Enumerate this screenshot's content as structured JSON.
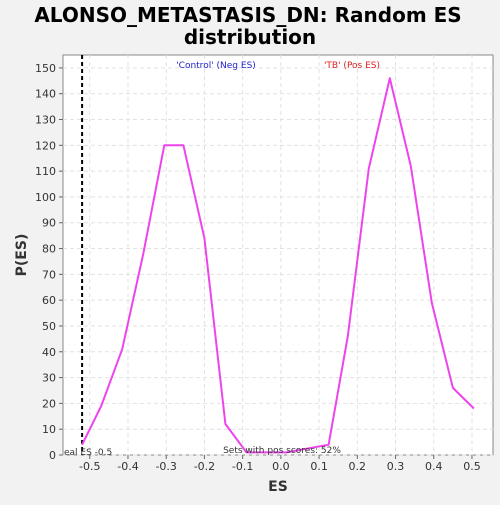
{
  "chart_data": {
    "type": "line",
    "title_line1": "ALONSO_METASTASIS_DN: Random ES",
    "title_line2": "distribution",
    "xlabel": "ES",
    "ylabel": "P(ES)",
    "xlim": [
      -0.57,
      0.555
    ],
    "ylim": [
      0,
      155
    ],
    "xticks": [
      -0.5,
      -0.4,
      -0.3,
      -0.2,
      -0.1,
      0.0,
      0.1,
      0.2,
      0.3,
      0.4,
      0.5
    ],
    "xtick_labels": [
      "-0.5",
      "-0.4",
      "-0.3",
      "-0.2",
      "-0.1",
      "0.0",
      "0.1",
      "0.2",
      "0.3",
      "0.4",
      "0.5"
    ],
    "yticks": [
      0,
      10,
      20,
      30,
      40,
      50,
      60,
      70,
      80,
      90,
      100,
      110,
      120,
      130,
      140,
      150
    ],
    "ytick_labels": [
      "0",
      "10",
      "20",
      "30",
      "40",
      "50",
      "60",
      "70",
      "80",
      "90",
      "100",
      "110",
      "120",
      "130",
      "140",
      "150"
    ],
    "grid": true,
    "series": [
      {
        "color": "#ee44ee",
        "x": [
          -0.52,
          -0.47,
          -0.415,
          -0.36,
          -0.305,
          -0.255,
          -0.2,
          -0.145,
          -0.09,
          0.015,
          0.125,
          0.175,
          0.23,
          0.285,
          0.34,
          0.395,
          0.45,
          0.505
        ],
        "y": [
          4,
          19,
          41,
          78,
          120,
          120,
          84,
          12,
          1,
          1,
          4,
          46,
          111,
          146,
          112,
          59,
          26,
          18
        ]
      }
    ],
    "actual_es": {
      "x": -0.52,
      "label": "eal ES -0.5"
    },
    "annotations": {
      "neg_label": "'Control' (Neg ES)",
      "neg_color": "#2222cc",
      "pos_label": "'TB' (Pos ES)",
      "pos_color": "#dd2222",
      "bottom_label": "Sets with pos scores: 52%"
    }
  }
}
